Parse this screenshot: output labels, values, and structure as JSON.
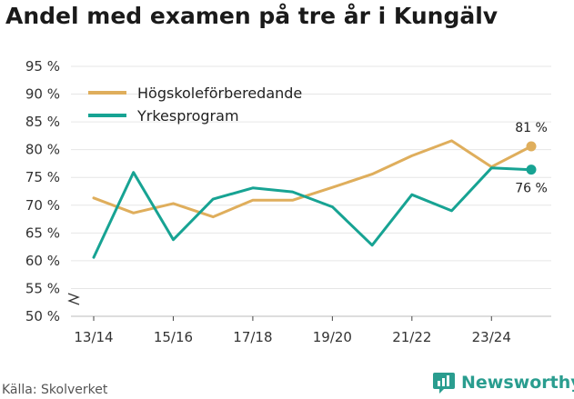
{
  "title": "Andel med examen på tre år i Kungälv",
  "source": "Källa: Skolverket",
  "brand": "Newsworthy",
  "chart_data": {
    "type": "line",
    "title": "Andel med examen på tre år i Kungälv",
    "xlabel": "",
    "ylabel": "",
    "ylim": [
      50,
      95
    ],
    "yticks": [
      50,
      55,
      60,
      65,
      70,
      75,
      80,
      85,
      90,
      95
    ],
    "ytick_suffix": " %",
    "axis_break": true,
    "x": [
      "13/14",
      "14/15",
      "15/16",
      "16/17",
      "17/18",
      "18/19",
      "19/20",
      "20/21",
      "21/22",
      "22/23",
      "23/24",
      "24/25"
    ],
    "xtick_labels": [
      "13/14",
      "15/16",
      "17/18",
      "19/20",
      "21/22",
      "23/24"
    ],
    "legend_position": "top-left",
    "series": [
      {
        "name": "Högskoleförberedande",
        "color": "#dfae5c",
        "values": [
          71.3,
          68.6,
          70.3,
          67.9,
          70.9,
          70.9,
          73.2,
          75.6,
          78.9,
          81.6,
          76.9,
          80.6
        ],
        "end_label": "81 %"
      },
      {
        "name": "Yrkesprogram",
        "color": "#17a393",
        "values": [
          60.6,
          75.9,
          63.8,
          71.1,
          73.1,
          72.4,
          69.7,
          62.8,
          71.9,
          69.0,
          76.7,
          76.4
        ],
        "end_label": "76 %"
      }
    ]
  }
}
